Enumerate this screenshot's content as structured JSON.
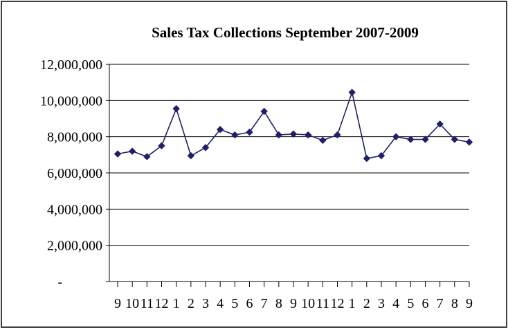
{
  "chart_data": {
    "type": "line",
    "title": "Sales Tax Collections September 2007-2009",
    "xlabel": "",
    "ylabel": "",
    "ylim": [
      0,
      12000000
    ],
    "y_ticks": [
      {
        "value": 0,
        "label": "-"
      },
      {
        "value": 2000000,
        "label": "2,000,000"
      },
      {
        "value": 4000000,
        "label": "4,000,000"
      },
      {
        "value": 6000000,
        "label": "6,000,000"
      },
      {
        "value": 8000000,
        "label": "8,000,000"
      },
      {
        "value": 10000000,
        "label": "10,000,000"
      },
      {
        "value": 12000000,
        "label": "12,000,000"
      }
    ],
    "grid": true,
    "legend": "none",
    "categories": [
      "9",
      "10",
      "11",
      "12",
      "1",
      "2",
      "3",
      "4",
      "5",
      "6",
      "7",
      "8",
      "9",
      "10",
      "11",
      "12",
      "1",
      "2",
      "3",
      "4",
      "5",
      "6",
      "7",
      "8",
      "9"
    ],
    "series": [
      {
        "color": "#1f1f6b",
        "marker": "diamond",
        "values": [
          7050000,
          7200000,
          6900000,
          7500000,
          9550000,
          6950000,
          7400000,
          8400000,
          8100000,
          8250000,
          9400000,
          8100000,
          8150000,
          8100000,
          7800000,
          8100000,
          10450000,
          6800000,
          6950000,
          8000000,
          7850000,
          7850000,
          8700000,
          7850000,
          7700000
        ]
      }
    ]
  }
}
